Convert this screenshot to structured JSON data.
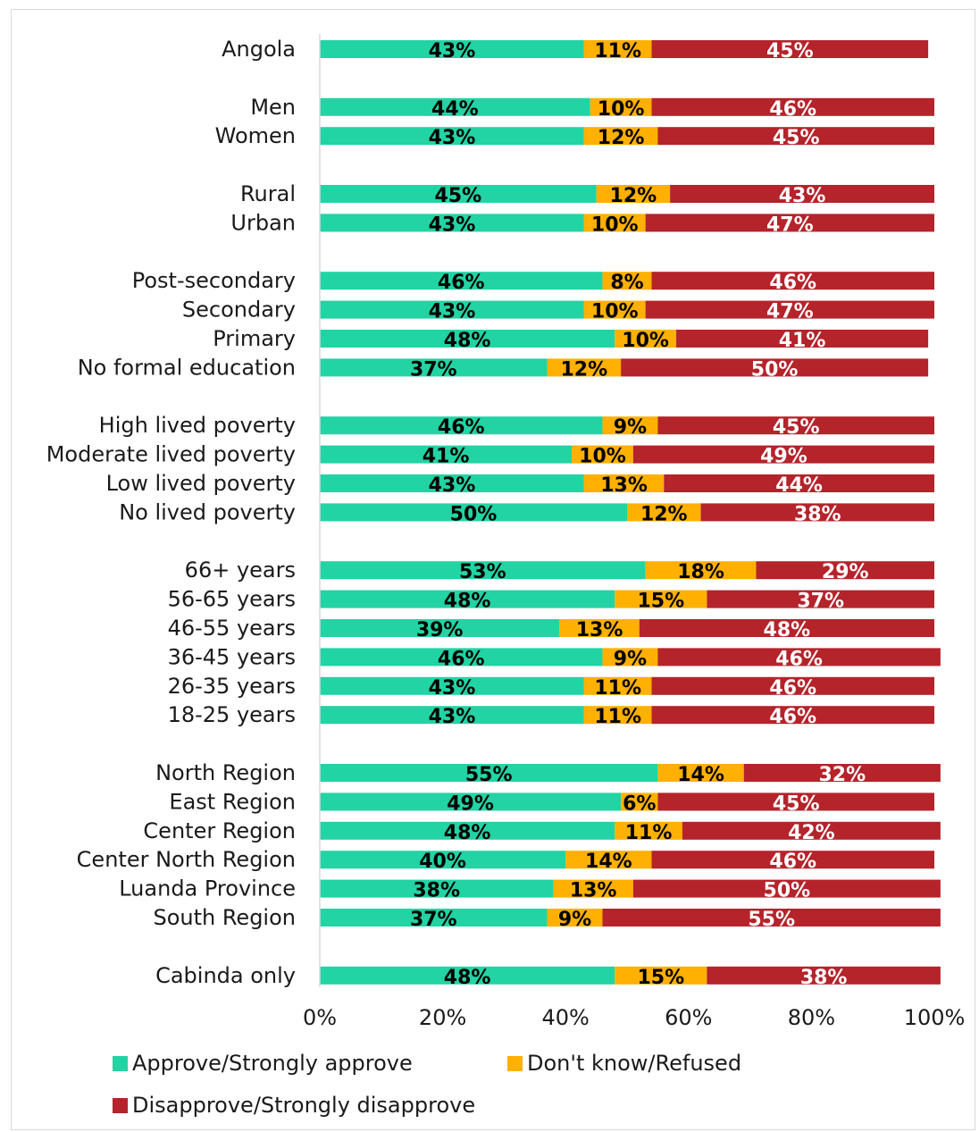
{
  "chart_data": {
    "type": "bar",
    "orientation": "horizontal",
    "stacked": true,
    "categories": [
      "Angola",
      "Men",
      "Women",
      "Rural",
      "Urban",
      "Post-secondary",
      "Secondary",
      "Primary",
      "No formal education",
      "High lived poverty",
      "Moderate lived poverty",
      "Low lived poverty",
      "No lived poverty",
      "66+ years",
      "56-65 years",
      "46-55 years",
      "36-45 years",
      "26-35 years",
      "18-25 years",
      "North Region",
      "East Region",
      "Center Region",
      "Center North Region",
      "Luanda Province",
      "South Region",
      "Cabinda only"
    ],
    "groups": [
      [
        0
      ],
      [
        1,
        2
      ],
      [
        3,
        4
      ],
      [
        5,
        6,
        7,
        8
      ],
      [
        9,
        10,
        11,
        12
      ],
      [
        13,
        14,
        15,
        16,
        17,
        18
      ],
      [
        19,
        20,
        21,
        22,
        23,
        24
      ],
      [
        25
      ]
    ],
    "series": [
      {
        "name": "Approve/Strongly approve",
        "color": "#22d3a3",
        "label_color": "#000000",
        "values": [
          43,
          44,
          43,
          45,
          43,
          46,
          43,
          48,
          37,
          46,
          41,
          43,
          50,
          53,
          48,
          39,
          46,
          43,
          43,
          55,
          49,
          48,
          40,
          38,
          37,
          48
        ]
      },
      {
        "name": "Don't know/Refused",
        "color": "#ffb000",
        "label_color": "#000000",
        "values": [
          11,
          10,
          12,
          12,
          10,
          8,
          10,
          10,
          12,
          9,
          10,
          13,
          12,
          18,
          15,
          13,
          9,
          11,
          11,
          14,
          6,
          11,
          14,
          13,
          9,
          15
        ]
      },
      {
        "name": "Disapprove/Strongly disapprove",
        "color": "#b5232b",
        "label_color": "#ffffff",
        "values": [
          45,
          46,
          45,
          43,
          47,
          46,
          47,
          41,
          50,
          45,
          49,
          44,
          38,
          29,
          37,
          48,
          46,
          46,
          46,
          32,
          45,
          42,
          46,
          50,
          55,
          38
        ]
      }
    ],
    "xlim": [
      0,
      100
    ],
    "x_ticks": [
      "0%",
      "20%",
      "40%",
      "60%",
      "80%",
      "100%"
    ],
    "value_suffix": "%",
    "legend_position": "bottom",
    "grid": false
  }
}
